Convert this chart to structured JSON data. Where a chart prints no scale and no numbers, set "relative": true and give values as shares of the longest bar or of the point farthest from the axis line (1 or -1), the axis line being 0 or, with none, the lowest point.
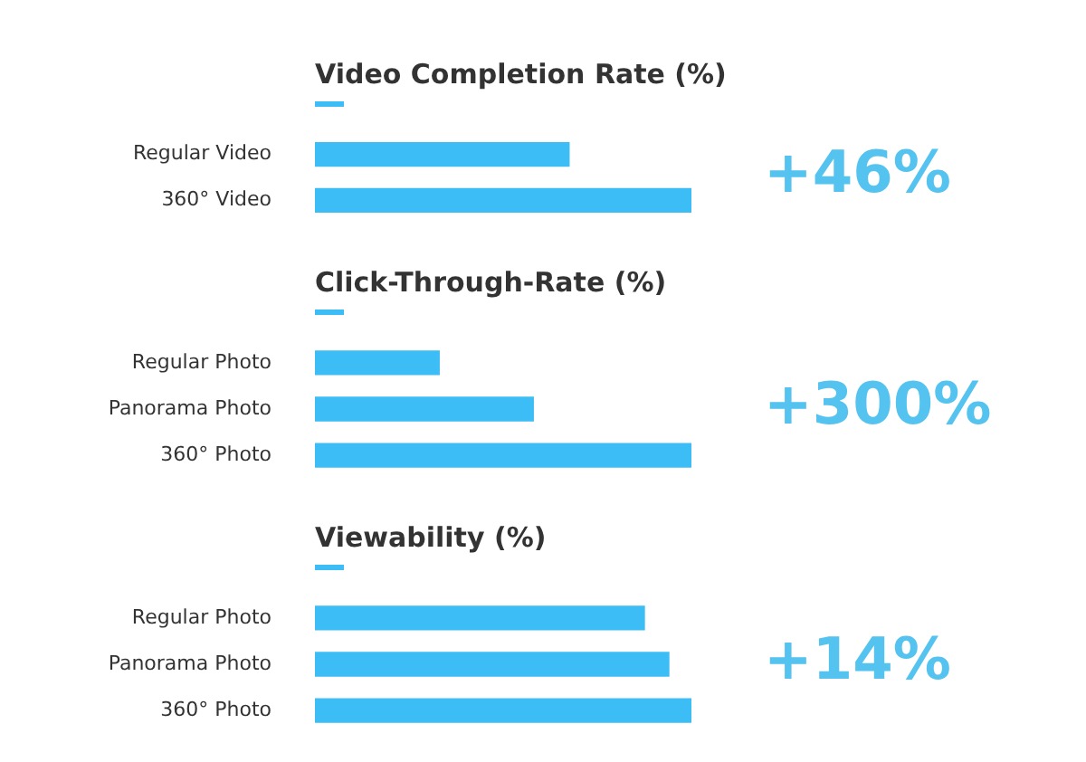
{
  "chart_data": [
    {
      "type": "bar",
      "orientation": "horizontal",
      "relative": true,
      "title": "Video Completion Rate (%)",
      "categories": [
        "Regular Video",
        "360° Video"
      ],
      "values": [
        0.675,
        1
      ],
      "color": "#3dbdf5",
      "annotations": [
        "+46%"
      ]
    },
    {
      "type": "bar",
      "orientation": "horizontal",
      "relative": true,
      "title": "Click-Through-Rate (%)",
      "categories": [
        "Regular Photo",
        "Panorama Photo",
        "360° Photo"
      ],
      "values": [
        0.33,
        0.58,
        1
      ],
      "color": "#3dbdf5",
      "annotations": [
        "+300%"
      ]
    },
    {
      "type": "bar",
      "orientation": "horizontal",
      "relative": true,
      "title": "Viewability (%)",
      "categories": [
        "Regular Photo",
        "Panorama Photo",
        "360° Photo"
      ],
      "values": [
        0.875,
        0.94,
        1
      ],
      "color": "#3dbdf5",
      "annotations": [
        "+14%"
      ]
    }
  ]
}
